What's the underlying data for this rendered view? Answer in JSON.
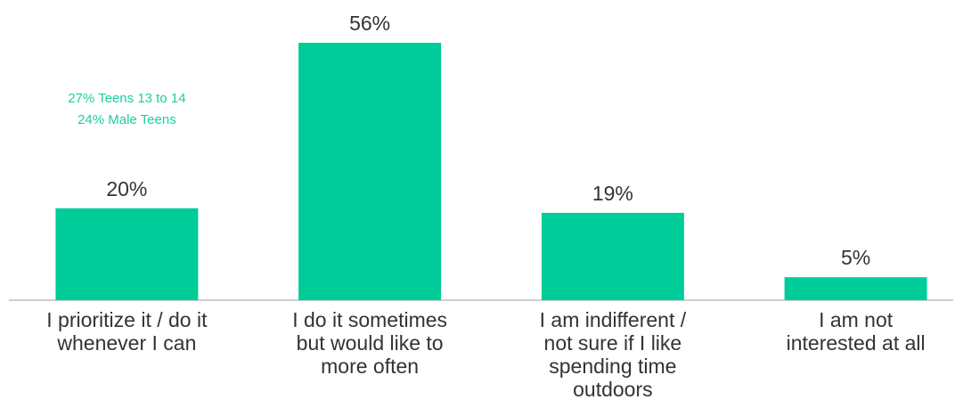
{
  "chart_data": {
    "type": "bar",
    "categories": [
      [
        "I prioritize it / do it",
        "whenever I can"
      ],
      [
        "I do it sometimes",
        "but would like to",
        "more often"
      ],
      [
        "I am indifferent /",
        "not sure if I like",
        "spending time",
        "outdoors"
      ],
      [
        "I am not",
        "interested at all"
      ]
    ],
    "values": [
      20,
      56,
      19,
      5
    ],
    "value_labels": [
      "20%",
      "56%",
      "19%",
      "5%"
    ],
    "ylim": [
      0,
      60
    ],
    "grid": false,
    "legend": "none",
    "bar_color": "#00cc99",
    "axis_color": "#bfbfbf",
    "annotation": {
      "category_index": 0,
      "lines": [
        "27% Teens 13 to 14",
        "24% Male Teens"
      ],
      "color": "#1ccfa0"
    }
  }
}
